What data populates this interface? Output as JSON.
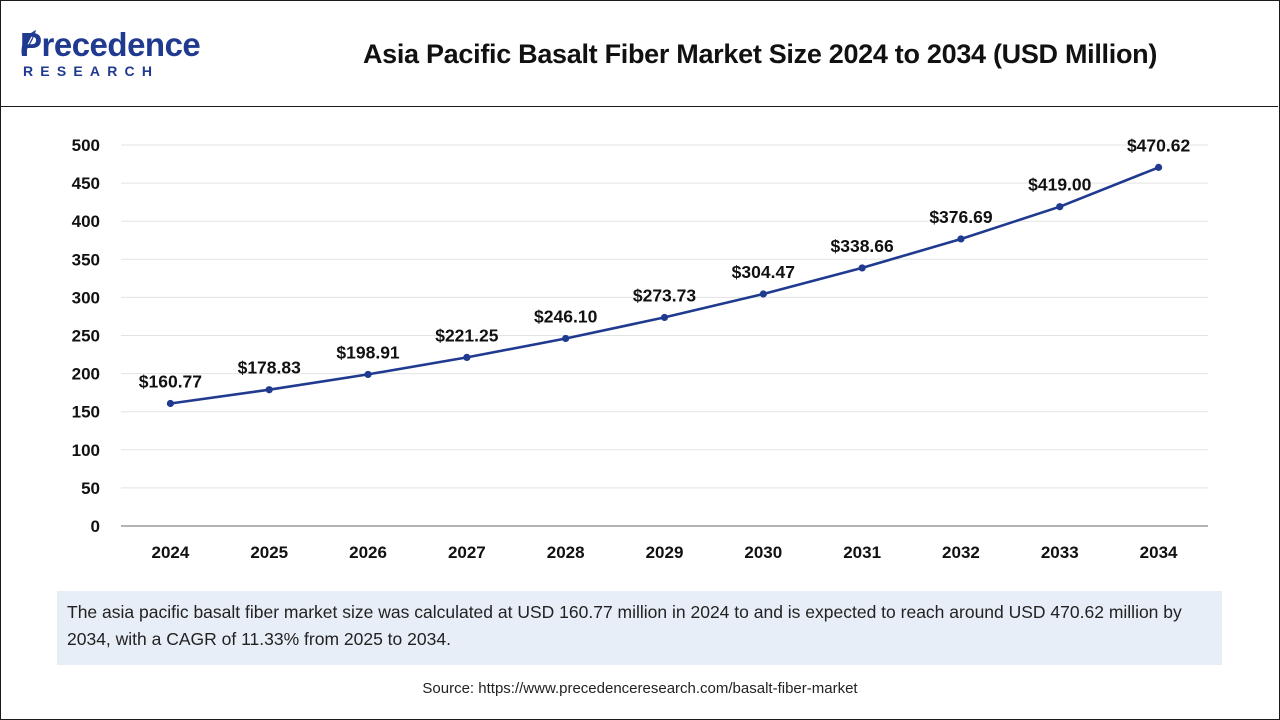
{
  "header": {
    "logo_main": "Precedence",
    "logo_sub": "RESEARCH",
    "title": "Asia Pacific Basalt Fiber Market Size 2024 to 2034 (USD Million)"
  },
  "colors": {
    "brand": "#1f3a8f",
    "line": "#1f3a8f",
    "note_bg": "#e8eef7"
  },
  "chart_data": {
    "type": "line",
    "title": "Asia Pacific Basalt Fiber Market Size 2024 to 2034 (USD Million)",
    "x": [
      "2024",
      "2025",
      "2026",
      "2027",
      "2028",
      "2029",
      "2030",
      "2031",
      "2032",
      "2033",
      "2034"
    ],
    "series": [
      {
        "values": [
          160.77,
          178.83,
          198.91,
          221.25,
          246.1,
          273.73,
          304.47,
          338.66,
          376.69,
          419.0,
          470.62
        ],
        "data_labels": [
          "$160.77",
          "$178.83",
          "$198.91",
          "$221.25",
          "$246.10",
          "$273.73",
          "$304.47",
          "$338.66",
          "$376.69",
          "$419.00",
          "$470.62"
        ]
      }
    ],
    "yticks": [
      "0",
      "50",
      "100",
      "150",
      "200",
      "250",
      "300",
      "350",
      "400",
      "450",
      "500"
    ],
    "ylim": [
      0,
      500
    ],
    "grid": true,
    "legend": "none"
  },
  "note": "The asia pacific basalt fiber market size was calculated at USD 160.77 million in 2024 to and is expected to reach around USD 470.62 million by 2034, with a CAGR of 11.33% from 2025 to 2034.",
  "source": "Source: https://www.precedenceresearch.com/basalt-fiber-market"
}
